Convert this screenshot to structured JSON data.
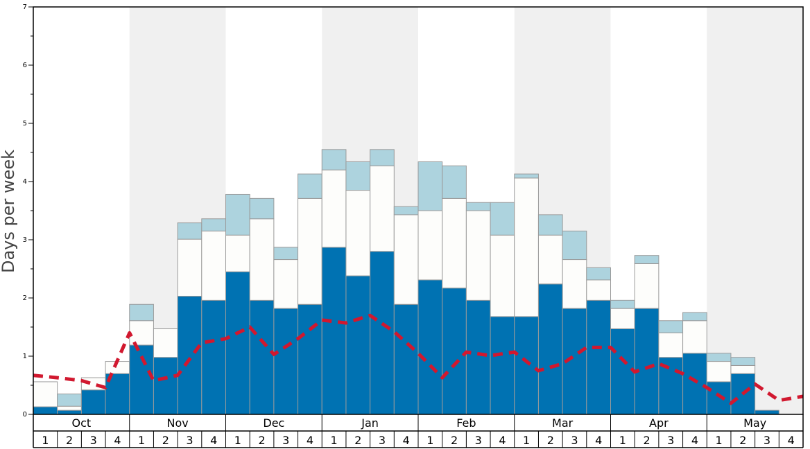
{
  "chart_data": {
    "type": "bar",
    "ylabel": "Days per week",
    "ylim": [
      0,
      7
    ],
    "yticks": [
      "0",
      "1",
      "2",
      "3",
      "4",
      "5",
      "6",
      "7"
    ],
    "months": [
      "Oct",
      "Nov",
      "Dec",
      "Jan",
      "Feb",
      "Mar",
      "Apr",
      "May"
    ],
    "weeks": [
      "1",
      "2",
      "3",
      "4"
    ],
    "stacked": true,
    "colors": {
      "series_dark": "#0072b2",
      "series_white": "#fdfdfb",
      "series_light": "#add3de",
      "line": "#d1182f",
      "shade": "#f0f0f0"
    },
    "series": [
      {
        "values": [
          0.13,
          0.07,
          0.42,
          0.7,
          1.19,
          0.98,
          2.03,
          1.96,
          2.45,
          1.96,
          1.82,
          1.89,
          2.87,
          2.38,
          2.8,
          1.89,
          2.31,
          2.17,
          1.96,
          1.68,
          1.68,
          2.24,
          1.82,
          1.96,
          1.47,
          1.82,
          0.98,
          1.05,
          0.56,
          0.7,
          0.07,
          0.0
        ]
      },
      {
        "values": [
          0.43,
          0.07,
          0.21,
          0.21,
          0.42,
          0.49,
          0.98,
          1.19,
          0.63,
          1.4,
          0.84,
          1.82,
          1.33,
          1.47,
          1.47,
          1.54,
          1.19,
          1.54,
          1.54,
          1.4,
          2.38,
          0.84,
          0.84,
          0.35,
          0.35,
          0.77,
          0.42,
          0.56,
          0.35,
          0.14,
          0.0,
          0.0
        ]
      },
      {
        "values": [
          0.0,
          0.21,
          0.0,
          0.0,
          0.28,
          0.0,
          0.28,
          0.21,
          0.7,
          0.35,
          0.21,
          0.42,
          0.35,
          0.49,
          0.28,
          0.14,
          0.84,
          0.56,
          0.14,
          0.56,
          0.07,
          0.35,
          0.49,
          0.21,
          0.14,
          0.14,
          0.21,
          0.14,
          0.14,
          0.14,
          0.0,
          0.0
        ]
      }
    ],
    "average_line": [
      0.67,
      0.63,
      0.58,
      0.46,
      1.4,
      0.58,
      0.67,
      1.23,
      1.3,
      1.5,
      1.03,
      1.3,
      1.62,
      1.57,
      1.7,
      1.42,
      1.05,
      0.63,
      1.07,
      1.01,
      1.07,
      0.75,
      0.87,
      1.15,
      1.15,
      0.73,
      0.87,
      0.7,
      0.46,
      0.19,
      0.52,
      0.24,
      0.31
    ]
  }
}
